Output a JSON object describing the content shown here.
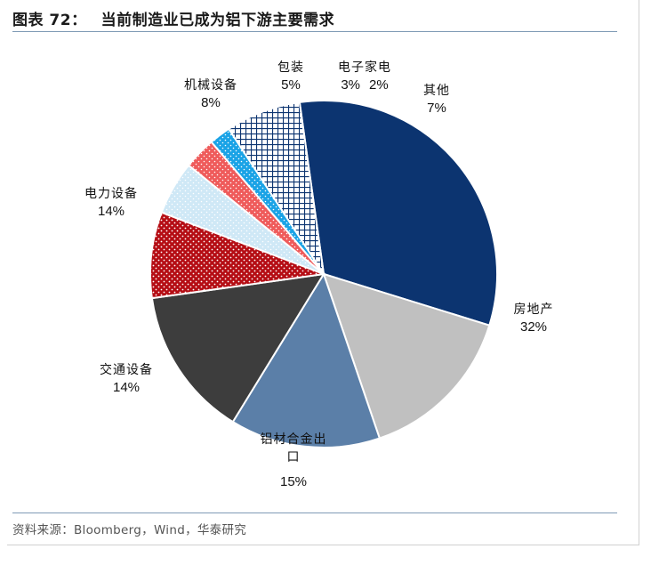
{
  "title": {
    "prefix": "图表 72：",
    "text": "当前制造业已成为铝下游主要需求"
  },
  "source": "资料来源：Bloomberg，Wind，华泰研究",
  "chart_data": {
    "type": "pie",
    "title": "当前制造业已成为铝下游主要需求",
    "slices": [
      {
        "name": "房地产",
        "value": 32,
        "label": "32%",
        "color": "#0c3470",
        "pattern": "solid"
      },
      {
        "name": "铝材合金出口",
        "value": 15,
        "label": "15%",
        "color": "#c0c0c0",
        "pattern": "solid"
      },
      {
        "name": "交通设备",
        "value": 14,
        "label": "14%",
        "color": "#5b7fa8",
        "pattern": "solid"
      },
      {
        "name": "电力设备",
        "value": 14,
        "label": "14%",
        "color": "#3d3d3d",
        "pattern": "solid"
      },
      {
        "name": "机械设备",
        "value": 8,
        "label": "8%",
        "color": "#b50d14",
        "pattern": "dots"
      },
      {
        "name": "包装",
        "value": 5,
        "label": "5%",
        "color": "#cfe8f6",
        "pattern": "dots"
      },
      {
        "name": "电子",
        "value": 3,
        "label": "3%",
        "color": "#ef5b5b",
        "pattern": "dots"
      },
      {
        "name": "家电",
        "value": 2,
        "label": "2%",
        "color": "#1aa3e6",
        "pattern": "dots"
      },
      {
        "name": "其他",
        "value": 7,
        "label": "7%",
        "color": "#0c3470",
        "pattern": "crosshatch"
      }
    ]
  }
}
